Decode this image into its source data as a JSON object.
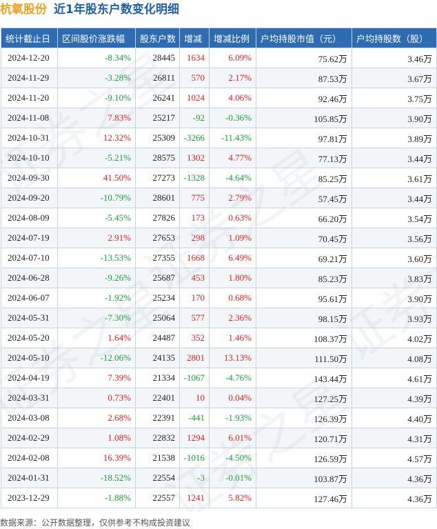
{
  "header": {
    "company": "杭氧股份",
    "subtitle": "近1年股东户数变化明细"
  },
  "table": {
    "columns": [
      "统计截止日",
      "区间股价涨跌幅",
      "股东户数",
      "增减",
      "增减比例",
      "户均持股市值（元）",
      "户均持股数（股）"
    ],
    "rows": [
      {
        "date": "2024-12-20",
        "price_change": "-8.34%",
        "holders": "28445",
        "change": "1634",
        "change_pct": "6.09%",
        "avg_value": "75.62万",
        "avg_shares": "3.46万"
      },
      {
        "date": "2024-11-29",
        "price_change": "-3.28%",
        "holders": "26811",
        "change": "570",
        "change_pct": "2.17%",
        "avg_value": "87.53万",
        "avg_shares": "3.67万"
      },
      {
        "date": "2024-11-20",
        "price_change": "-9.10%",
        "holders": "26241",
        "change": "1024",
        "change_pct": "4.06%",
        "avg_value": "92.46万",
        "avg_shares": "3.75万"
      },
      {
        "date": "2024-11-08",
        "price_change": "7.83%",
        "holders": "25217",
        "change": "-92",
        "change_pct": "-0.36%",
        "avg_value": "105.85万",
        "avg_shares": "3.90万"
      },
      {
        "date": "2024-10-31",
        "price_change": "12.32%",
        "holders": "25309",
        "change": "-3266",
        "change_pct": "-11.43%",
        "avg_value": "97.81万",
        "avg_shares": "3.89万"
      },
      {
        "date": "2024-10-10",
        "price_change": "-5.21%",
        "holders": "28575",
        "change": "1302",
        "change_pct": "4.77%",
        "avg_value": "77.13万",
        "avg_shares": "3.44万"
      },
      {
        "date": "2024-09-30",
        "price_change": "41.50%",
        "holders": "27273",
        "change": "-1328",
        "change_pct": "-4.64%",
        "avg_value": "85.25万",
        "avg_shares": "3.61万"
      },
      {
        "date": "2024-09-20",
        "price_change": "-10.79%",
        "holders": "28601",
        "change": "775",
        "change_pct": "2.79%",
        "avg_value": "57.45万",
        "avg_shares": "3.44万"
      },
      {
        "date": "2024-08-09",
        "price_change": "-5.45%",
        "holders": "27826",
        "change": "173",
        "change_pct": "0.63%",
        "avg_value": "66.20万",
        "avg_shares": "3.54万"
      },
      {
        "date": "2024-07-19",
        "price_change": "2.91%",
        "holders": "27653",
        "change": "298",
        "change_pct": "1.09%",
        "avg_value": "70.45万",
        "avg_shares": "3.56万"
      },
      {
        "date": "2024-07-10",
        "price_change": "-13.53%",
        "holders": "27355",
        "change": "1668",
        "change_pct": "6.49%",
        "avg_value": "69.21万",
        "avg_shares": "3.60万"
      },
      {
        "date": "2024-06-28",
        "price_change": "-9.26%",
        "holders": "25687",
        "change": "453",
        "change_pct": "1.80%",
        "avg_value": "85.23万",
        "avg_shares": "3.83万"
      },
      {
        "date": "2024-06-07",
        "price_change": "-1.92%",
        "holders": "25234",
        "change": "170",
        "change_pct": "0.68%",
        "avg_value": "95.61万",
        "avg_shares": "3.90万"
      },
      {
        "date": "2024-05-31",
        "price_change": "-7.30%",
        "holders": "25064",
        "change": "577",
        "change_pct": "2.36%",
        "avg_value": "98.15万",
        "avg_shares": "3.93万"
      },
      {
        "date": "2024-05-20",
        "price_change": "1.64%",
        "holders": "24487",
        "change": "352",
        "change_pct": "1.46%",
        "avg_value": "108.37万",
        "avg_shares": "4.02万"
      },
      {
        "date": "2024-05-10",
        "price_change": "-12.06%",
        "holders": "24135",
        "change": "2801",
        "change_pct": "13.13%",
        "avg_value": "111.50万",
        "avg_shares": "4.08万"
      },
      {
        "date": "2024-04-19",
        "price_change": "7.39%",
        "holders": "21334",
        "change": "-1067",
        "change_pct": "-4.76%",
        "avg_value": "143.44万",
        "avg_shares": "4.61万"
      },
      {
        "date": "2024-03-31",
        "price_change": "0.73%",
        "holders": "22401",
        "change": "10",
        "change_pct": "0.04%",
        "avg_value": "127.25万",
        "avg_shares": "4.39万"
      },
      {
        "date": "2024-03-08",
        "price_change": "2.68%",
        "holders": "22391",
        "change": "-441",
        "change_pct": "-1.93%",
        "avg_value": "126.39万",
        "avg_shares": "4.40万"
      },
      {
        "date": "2024-02-29",
        "price_change": "1.08%",
        "holders": "22832",
        "change": "1294",
        "change_pct": "6.01%",
        "avg_value": "120.71万",
        "avg_shares": "4.31万"
      },
      {
        "date": "2024-02-08",
        "price_change": "16.39%",
        "holders": "21538",
        "change": "-1016",
        "change_pct": "-4.50%",
        "avg_value": "126.59万",
        "avg_shares": "4.57万"
      },
      {
        "date": "2024-01-31",
        "price_change": "-18.52%",
        "holders": "22554",
        "change": "-3",
        "change_pct": "-0.01%",
        "avg_value": "103.87万",
        "avg_shares": "4.36万"
      },
      {
        "date": "2023-12-29",
        "price_change": "-1.88%",
        "holders": "22557",
        "change": "1241",
        "change_pct": "5.82%",
        "avg_value": "127.46万",
        "avg_shares": "4.36万"
      }
    ]
  },
  "footer": {
    "source": "数据来源：公开数据整理，仅供参考不构成投资建议"
  },
  "watermark": {
    "text": "证券之星"
  },
  "colors": {
    "header_bg": "#2d6cb5",
    "positive": "#e02020",
    "negative": "#1a9b3a",
    "company": "#f0a020",
    "subtitle": "#1f5fa8"
  }
}
